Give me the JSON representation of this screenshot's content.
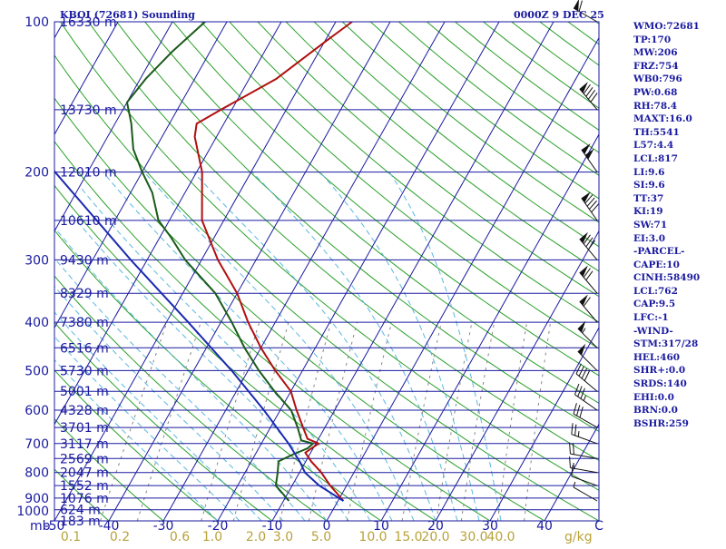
{
  "header": {
    "station": "KBOI (72681) Sounding",
    "time": "0000Z  9 DEC 25"
  },
  "indices": [
    "WMO:72681",
    "TP:170",
    "MW:206",
    "FRZ:754",
    "WB0:796",
    "PW:0.68",
    "RH:78.4",
    "MAXT:16.0",
    "TH:5541",
    "L57:4.4",
    "LCL:817",
    "LI:9.6",
    "SI:9.6",
    "TT:37",
    "KI:19",
    "SW:71",
    "EI:3.0",
    "-PARCEL-",
    "CAPE:10",
    "CINH:58490",
    "LCL:762",
    "CAP:9.5",
    "LFC:-1",
    "-WIND-",
    "STM:317/28",
    "HEL:460",
    "SHR+:0.0",
    "SRDS:140",
    "EHI:0.0",
    "BRN:0.0",
    "BSHR:259"
  ],
  "colors": {
    "isobar": "#1a1aa0",
    "isotherm": "#1a1aa0",
    "dry_adiabat": "#2aa02a",
    "moist_adiabat": "#5ab8e0",
    "mixing_ratio": "#888888",
    "temperature": "#b01010",
    "dewpoint": "#1a5a1a",
    "parcel": "#1a2ab0",
    "barb": "#111111"
  },
  "chart_data": {
    "type": "skew-t",
    "title": "KBOI (72681) Sounding 0000Z 9 DEC 25",
    "xlabel": "Temperature (C)",
    "ylabel": "Pressure (mb)",
    "x_unit_label": "mb",
    "mixing_ratio_unit": "g/kg",
    "pressure_range": [
      1000,
      100
    ],
    "temperature_range": [
      -50,
      50
    ],
    "pressure_ticks": [
      100,
      200,
      300,
      400,
      500,
      600,
      700,
      800,
      900,
      1000
    ],
    "temperature_ticks": [
      -50,
      -40,
      -30,
      -20,
      -10,
      0,
      10,
      20,
      30,
      40,
      50
    ],
    "temperature_tick_labels": [
      "-50",
      "-40",
      "-30",
      "-20",
      "-10",
      "0",
      "10",
      "20",
      "30",
      "40",
      "C"
    ],
    "mixing_ratio_labels": [
      {
        "w": "0.1",
        "t": -47
      },
      {
        "w": "0.2",
        "t": -38
      },
      {
        "w": "0.6",
        "t": -27
      },
      {
        "w": "1.0",
        "t": -21
      },
      {
        "w": "2.0",
        "t": -13
      },
      {
        "w": "3.0",
        "t": -8
      },
      {
        "w": "5.0",
        "t": -1
      },
      {
        "w": "10.0",
        "t": 8.5
      },
      {
        "w": "15.0",
        "t": 15
      },
      {
        "w": "20.0",
        "t": 20
      },
      {
        "w": "30.0",
        "t": 27
      },
      {
        "w": "40.0",
        "t": 32
      }
    ],
    "heights": [
      {
        "p": 100,
        "h": "16330 m"
      },
      {
        "p": 150,
        "h": "13730 m"
      },
      {
        "p": 200,
        "h": "12010 m"
      },
      {
        "p": 250,
        "h": "10610 m"
      },
      {
        "p": 300,
        "h": "9430 m"
      },
      {
        "p": 350,
        "h": "8329 m"
      },
      {
        "p": 400,
        "h": "7380 m"
      },
      {
        "p": 450,
        "h": "6516 m"
      },
      {
        "p": 500,
        "h": "5730 m"
      },
      {
        "p": 550,
        "h": "5001 m"
      },
      {
        "p": 600,
        "h": "4328 m"
      },
      {
        "p": 650,
        "h": "3701 m"
      },
      {
        "p": 700,
        "h": "3117 m"
      },
      {
        "p": 750,
        "h": "2569 m"
      },
      {
        "p": 800,
        "h": "2047 m"
      },
      {
        "p": 850,
        "h": "1552 m"
      },
      {
        "p": 900,
        "h": "1076 m"
      },
      {
        "p": 950,
        "h": "624 m"
      },
      {
        "p": 1000,
        "h": "183 m"
      }
    ],
    "series": [
      {
        "name": "Temperature",
        "points": [
          {
            "p": 912,
            "t": 1
          },
          {
            "p": 880,
            "t": -1
          },
          {
            "p": 850,
            "t": -3
          },
          {
            "p": 800,
            "t": -6
          },
          {
            "p": 760,
            "t": -9
          },
          {
            "p": 730,
            "t": -11
          },
          {
            "p": 700,
            "t": -9.5
          },
          {
            "p": 685,
            "t": -12
          },
          {
            "p": 650,
            "t": -14
          },
          {
            "p": 600,
            "t": -17
          },
          {
            "p": 550,
            "t": -20
          },
          {
            "p": 500,
            "t": -25
          },
          {
            "p": 450,
            "t": -30
          },
          {
            "p": 400,
            "t": -35
          },
          {
            "p": 350,
            "t": -40
          },
          {
            "p": 300,
            "t": -47
          },
          {
            "p": 250,
            "t": -54
          },
          {
            "p": 200,
            "t": -59
          },
          {
            "p": 170,
            "t": -64
          },
          {
            "p": 160,
            "t": -65
          },
          {
            "p": 150,
            "t": -62
          },
          {
            "p": 130,
            "t": -55
          },
          {
            "p": 110,
            "t": -50
          },
          {
            "p": 100,
            "t": -47
          }
        ]
      },
      {
        "name": "Dewpoint",
        "points": [
          {
            "p": 912,
            "t": -9
          },
          {
            "p": 880,
            "t": -11
          },
          {
            "p": 850,
            "t": -13
          },
          {
            "p": 800,
            "t": -14
          },
          {
            "p": 760,
            "t": -15
          },
          {
            "p": 735,
            "t": -13
          },
          {
            "p": 715,
            "t": -11
          },
          {
            "p": 700,
            "t": -10.5
          },
          {
            "p": 690,
            "t": -13
          },
          {
            "p": 650,
            "t": -15
          },
          {
            "p": 600,
            "t": -18
          },
          {
            "p": 550,
            "t": -23
          },
          {
            "p": 500,
            "t": -28
          },
          {
            "p": 450,
            "t": -33
          },
          {
            "p": 400,
            "t": -38
          },
          {
            "p": 350,
            "t": -44
          },
          {
            "p": 300,
            "t": -53
          },
          {
            "p": 270,
            "t": -58
          },
          {
            "p": 250,
            "t": -62
          },
          {
            "p": 220,
            "t": -66
          },
          {
            "p": 200,
            "t": -70
          },
          {
            "p": 180,
            "t": -74
          },
          {
            "p": 160,
            "t": -77
          },
          {
            "p": 145,
            "t": -80
          },
          {
            "p": 130,
            "t": -79
          },
          {
            "p": 115,
            "t": -77
          },
          {
            "p": 100,
            "t": -74
          }
        ]
      },
      {
        "name": "Parcel",
        "points": [
          {
            "p": 912,
            "t": 1
          },
          {
            "p": 850,
            "t": -5
          },
          {
            "p": 800,
            "t": -9
          },
          {
            "p": 762,
            "t": -11
          },
          {
            "p": 700,
            "t": -15
          },
          {
            "p": 600,
            "t": -23
          },
          {
            "p": 500,
            "t": -33
          },
          {
            "p": 400,
            "t": -46
          },
          {
            "p": 300,
            "t": -63
          },
          {
            "p": 200,
            "t": -86
          },
          {
            "p": 150,
            "t": -101
          },
          {
            "p": 110,
            "t": -115
          }
        ]
      }
    ],
    "winds": [
      {
        "p": 912,
        "dir": 300,
        "spd": 5
      },
      {
        "p": 850,
        "dir": 290,
        "spd": 10
      },
      {
        "p": 800,
        "dir": 280,
        "spd": 15
      },
      {
        "p": 750,
        "dir": 280,
        "spd": 20
      },
      {
        "p": 700,
        "dir": 290,
        "spd": 25
      },
      {
        "p": 650,
        "dir": 300,
        "spd": 30
      },
      {
        "p": 600,
        "dir": 305,
        "spd": 35
      },
      {
        "p": 550,
        "dir": 310,
        "spd": 40
      },
      {
        "p": 500,
        "dir": 315,
        "spd": 50
      },
      {
        "p": 450,
        "dir": 315,
        "spd": 55
      },
      {
        "p": 400,
        "dir": 320,
        "spd": 60
      },
      {
        "p": 350,
        "dir": 320,
        "spd": 70
      },
      {
        "p": 300,
        "dir": 320,
        "spd": 80
      },
      {
        "p": 250,
        "dir": 325,
        "spd": 90
      },
      {
        "p": 200,
        "dir": 325,
        "spd": 100
      },
      {
        "p": 150,
        "dir": 320,
        "spd": 90
      },
      {
        "p": 100,
        "dir": 300,
        "spd": 60
      }
    ]
  }
}
